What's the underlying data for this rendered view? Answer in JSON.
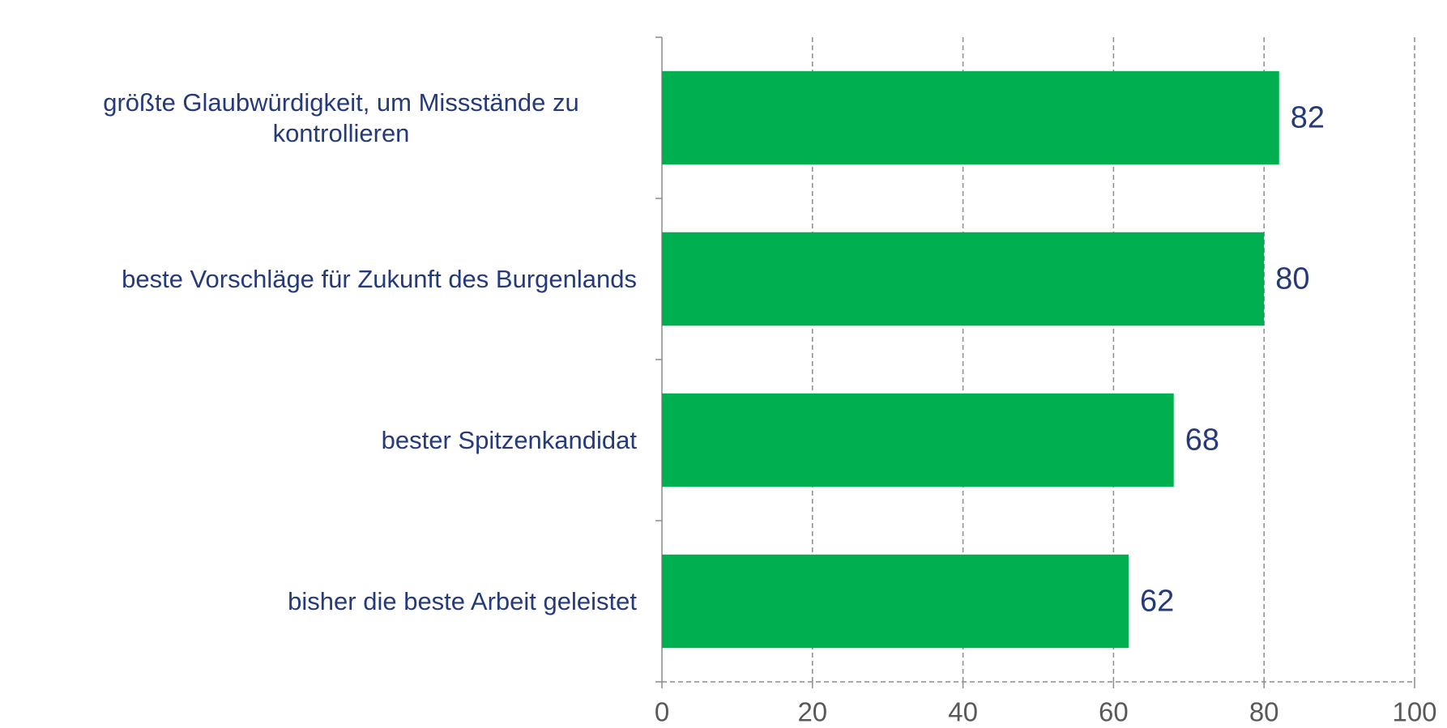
{
  "chart_data": {
    "type": "bar",
    "orientation": "horizontal",
    "categories": [
      "größte Glaubwürdigkeit, um Missstände zu kontrollieren",
      "beste Vorschläge für Zukunft des Burgenlands",
      "bester Spitzenkandidat",
      "bisher die beste Arbeit geleistet"
    ],
    "values": [
      82,
      80,
      68,
      62
    ],
    "color": "#00b050",
    "xlim": [
      0,
      100
    ],
    "xticks": [
      0,
      20,
      40,
      60,
      80,
      100
    ],
    "grid": true
  }
}
